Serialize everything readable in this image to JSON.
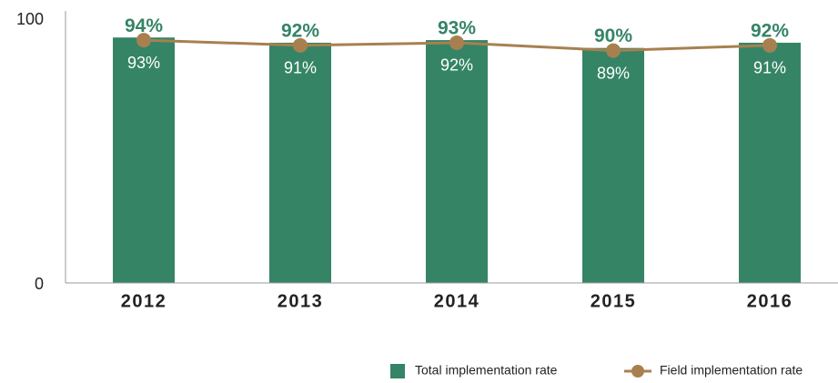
{
  "chart_data": {
    "type": "bar",
    "categories": [
      "2012",
      "2013",
      "2014",
      "2015",
      "2016"
    ],
    "series": [
      {
        "name": "Total implementation rate",
        "type": "bar",
        "color": "#358466",
        "values": [
          94,
          92,
          93,
          90,
          92
        ],
        "value_labels": [
          "94%",
          "92%",
          "93%",
          "90%",
          "92%"
        ]
      },
      {
        "name": "Field implementation rate",
        "type": "line",
        "color": "#a8804f",
        "values": [
          93,
          91,
          92,
          89,
          91
        ],
        "value_labels": [
          "93%",
          "91%",
          "92%",
          "89%",
          "91%"
        ]
      }
    ],
    "ylim": [
      0,
      100
    ],
    "yticks": [
      0,
      100
    ],
    "grid": false,
    "legend": "bottom-right"
  }
}
